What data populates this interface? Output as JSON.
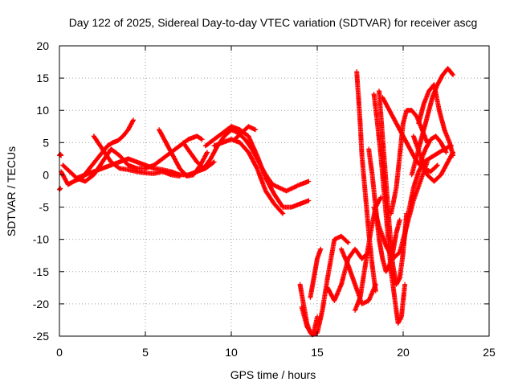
{
  "chart_data": {
    "type": "scatter",
    "title": "Day 122 of 2025, Sidereal Day-to-day VTEC variation (SDTVAR) for receiver ascg",
    "xlabel": "GPS time / hours",
    "ylabel": "SDTVAR / TECUs",
    "xlim": [
      0,
      25
    ],
    "ylim": [
      -25,
      20
    ],
    "x_ticks": [
      0,
      5,
      10,
      15,
      20,
      25
    ],
    "y_ticks": [
      -25,
      -20,
      -15,
      -10,
      -5,
      0,
      5,
      10,
      15,
      20
    ],
    "x_tick_labels": [
      "0",
      "5",
      "10",
      "15",
      "20",
      "25"
    ],
    "y_tick_labels": [
      "-25",
      "-20",
      "-15",
      "-10",
      "-5",
      "0",
      "5",
      "10",
      "15",
      "20"
    ],
    "grid": true,
    "marker": "+",
    "series_color": "#ff0000",
    "series": [
      {
        "x": [
          0.0,
          0.05,
          0.1
        ],
        "y": [
          3.0,
          3.2,
          3.0
        ]
      },
      {
        "x": [
          0.0,
          0.05
        ],
        "y": [
          -2.3,
          -2.1
        ]
      },
      {
        "x": [
          0.1,
          0.3,
          0.5,
          0.7,
          1.0,
          1.3,
          1.6,
          1.9,
          2.2,
          2.5,
          2.8,
          3.1,
          3.4,
          3.7,
          4.0,
          4.3
        ],
        "y": [
          0.5,
          -0.5,
          -1.5,
          -1.2,
          -0.8,
          -0.5,
          0.5,
          1.5,
          2.5,
          3.5,
          4.5,
          5.0,
          5.3,
          6.0,
          7.0,
          8.5
        ]
      },
      {
        "x": [
          0.2,
          0.6,
          1.0,
          1.5,
          2.0,
          2.5,
          3.0,
          3.5,
          4.0,
          4.5,
          5.0,
          5.5,
          6.0,
          6.5,
          7.0,
          7.5,
          8.0,
          8.3
        ],
        "y": [
          1.5,
          0.5,
          -0.5,
          -1.0,
          0.0,
          2.0,
          4.0,
          3.0,
          1.5,
          1.0,
          1.0,
          1.5,
          2.5,
          3.5,
          4.5,
          5.5,
          6.0,
          5.5
        ]
      },
      {
        "x": [
          1.0,
          1.5,
          2.0,
          2.5,
          3.0,
          3.5,
          4.0,
          4.5,
          5.0,
          5.5,
          6.0,
          6.5,
          7.0,
          7.5,
          8.0,
          8.5,
          9.0
        ],
        "y": [
          -0.5,
          0.0,
          0.5,
          1.0,
          1.5,
          2.0,
          2.5,
          2.0,
          1.5,
          1.0,
          0.8,
          0.5,
          0.0,
          0.0,
          0.5,
          1.0,
          2.0
        ]
      },
      {
        "x": [
          2.0,
          2.5,
          3.0,
          3.5,
          4.0,
          4.5,
          5.0,
          5.5,
          6.0,
          6.5,
          7.0
        ],
        "y": [
          6.0,
          4.0,
          2.0,
          1.0,
          0.8,
          0.5,
          0.3,
          0.2,
          0.5,
          0.0,
          -0.2
        ]
      },
      {
        "x": [
          5.8,
          6.2,
          6.6,
          7.0,
          7.4,
          7.8,
          8.2,
          8.6
        ],
        "y": [
          7.0,
          5.0,
          3.0,
          1.0,
          -0.2,
          0.0,
          1.5,
          3.5
        ]
      },
      {
        "x": [
          7.2,
          7.6,
          8.0,
          8.4,
          8.8,
          9.2,
          9.6,
          10.0,
          10.4,
          10.8,
          11.2,
          11.6,
          12.0,
          12.4,
          12.8,
          13.2,
          13.6,
          14.0,
          14.5
        ],
        "y": [
          5.0,
          3.5,
          2.0,
          1.0,
          2.5,
          4.5,
          6.0,
          7.0,
          6.5,
          5.5,
          4.0,
          2.0,
          0.0,
          -1.5,
          -2.0,
          -2.5,
          -2.0,
          -1.5,
          -1.0
        ]
      },
      {
        "x": [
          8.5,
          9.0,
          9.5,
          10.0,
          10.5,
          11.0,
          11.5,
          12.0,
          12.5,
          13.0,
          13.5,
          14.0,
          14.5
        ],
        "y": [
          4.5,
          5.5,
          6.5,
          7.5,
          7.0,
          6.0,
          3.0,
          -0.5,
          -3.0,
          -5.0,
          -5.0,
          -4.5,
          -4.0
        ]
      },
      {
        "x": [
          9.0,
          9.5,
          10.0,
          10.5,
          11.0,
          11.5,
          12.0,
          12.5,
          13.0
        ],
        "y": [
          4.5,
          5.0,
          5.5,
          5.0,
          3.5,
          1.0,
          -2.5,
          -4.5,
          -6.0
        ]
      },
      {
        "x": [
          10.2,
          10.6,
          11.0,
          11.4
        ],
        "y": [
          5.5,
          6.5,
          7.5,
          7.0
        ]
      },
      {
        "x": [
          14.0,
          14.2,
          14.4,
          14.6,
          14.8,
          15.0
        ],
        "y": [
          -17.0,
          -20.0,
          -23.0,
          -24.5,
          -24.5,
          -22.0
        ]
      },
      {
        "x": [
          14.1,
          14.4,
          14.7,
          15.0,
          15.3,
          15.6,
          16.0,
          16.4,
          16.8
        ],
        "y": [
          -20.5,
          -23.5,
          -24.8,
          -24.5,
          -21.0,
          -16.0,
          -10.0,
          -9.5,
          -10.5
        ]
      },
      {
        "x": [
          14.6,
          14.8,
          15.0,
          15.2
        ],
        "y": [
          -19.0,
          -16.0,
          -13.0,
          -11.5
        ]
      },
      {
        "x": [
          15.6,
          16.0,
          16.4,
          16.8,
          17.2,
          17.6,
          18.0
        ],
        "y": [
          -17.5,
          -19.5,
          -17.0,
          -13.0,
          -11.5,
          -13.0,
          -12.0
        ]
      },
      {
        "x": [
          16.4,
          16.8,
          17.2,
          17.6,
          18.0,
          18.4
        ],
        "y": [
          -11.5,
          -14.0,
          -17.0,
          -20.0,
          -19.5,
          -17.0
        ]
      },
      {
        "x": [
          17.2,
          17.5,
          17.8,
          18.1,
          18.4,
          18.7
        ],
        "y": [
          -21.0,
          -19.0,
          -14.0,
          -9.0,
          -5.0,
          -3.5
        ]
      },
      {
        "x": [
          17.3,
          17.4,
          17.5,
          17.6,
          17.8,
          18.0,
          18.2,
          18.4
        ],
        "y": [
          16.0,
          12.0,
          8.0,
          3.0,
          -3.0,
          -9.0,
          -14.0,
          -18.0
        ]
      },
      {
        "x": [
          18.0,
          18.2,
          18.4,
          18.6,
          18.8,
          19.0,
          19.2,
          19.4,
          19.6,
          19.8
        ],
        "y": [
          4.0,
          0.0,
          -5.0,
          -10.0,
          -13.0,
          -15.0,
          -14.0,
          -12.0,
          -9.0,
          -7.0
        ]
      },
      {
        "x": [
          18.3,
          18.5,
          18.7,
          18.9,
          19.1,
          19.3,
          19.5,
          19.7,
          19.9,
          20.1
        ],
        "y": [
          12.5,
          8.0,
          3.0,
          -3.0,
          -9.0,
          -15.0,
          -19.0,
          -23.0,
          -22.0,
          -17.0
        ]
      },
      {
        "x": [
          18.6,
          18.8,
          19.0,
          19.2,
          19.4,
          19.6,
          19.8,
          20.0,
          20.2
        ],
        "y": [
          13.0,
          6.0,
          -1.0,
          -8.0,
          -14.0,
          -17.0,
          -16.0,
          -12.0,
          -6.0
        ]
      },
      {
        "x": [
          18.3,
          18.6,
          19.0,
          19.4,
          19.8,
          20.2,
          20.6,
          21.0,
          21.4
        ],
        "y": [
          -5.0,
          -8.0,
          -11.0,
          -13.0,
          -12.0,
          -8.0,
          -4.0,
          -1.0,
          2.0
        ]
      },
      {
        "x": [
          18.8,
          19.2,
          19.6,
          20.0,
          20.4,
          20.8,
          21.2,
          21.6,
          22.0
        ],
        "y": [
          12.0,
          10.0,
          8.0,
          6.0,
          4.0,
          2.0,
          1.0,
          0.5,
          1.5
        ]
      },
      {
        "x": [
          19.3,
          19.6,
          19.8,
          20.0,
          20.2,
          20.5,
          20.8,
          21.1,
          21.4
        ],
        "y": [
          -6.0,
          -2.0,
          3.0,
          8.0,
          10.0,
          10.0,
          9.0,
          7.0,
          5.0
        ]
      },
      {
        "x": [
          20.0,
          20.3,
          20.6,
          20.9,
          21.2,
          21.5,
          21.8,
          22.1,
          22.4,
          22.8
        ],
        "y": [
          -11.0,
          -6.0,
          -2.0,
          0.5,
          2.0,
          2.5,
          3.0,
          3.5,
          4.0,
          4.5
        ]
      },
      {
        "x": [
          20.5,
          20.8,
          21.1,
          21.4,
          21.7,
          22.0,
          22.3,
          22.6,
          22.9
        ],
        "y": [
          0.0,
          3.0,
          6.0,
          9.0,
          12.0,
          14.0,
          15.5,
          16.5,
          15.5
        ]
      },
      {
        "x": [
          20.9,
          21.2,
          21.5,
          21.8,
          22.1,
          22.4,
          22.7,
          22.9
        ],
        "y": [
          8.0,
          11.0,
          13.0,
          14.0,
          10.0,
          7.0,
          5.0,
          3.0
        ]
      },
      {
        "x": [
          20.6,
          21.0,
          21.4,
          21.8,
          22.2,
          22.6,
          22.9
        ],
        "y": [
          6.0,
          3.0,
          0.0,
          -1.0,
          0.0,
          2.0,
          3.5
        ]
      },
      {
        "x": [
          21.0,
          21.3,
          21.6,
          21.9,
          22.2,
          22.5
        ],
        "y": [
          2.0,
          4.0,
          5.5,
          6.0,
          5.0,
          3.5
        ]
      }
    ]
  }
}
